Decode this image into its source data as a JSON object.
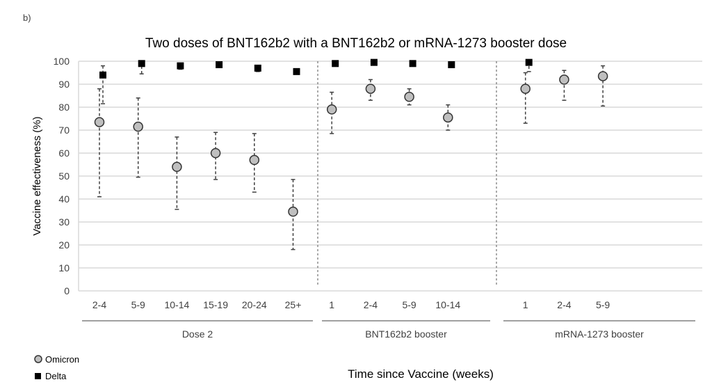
{
  "panel_label": "b)",
  "chart_data": {
    "type": "scatter",
    "title": "Two doses of BNT162b2 with a BNT162b2 or mRNA-1273 booster dose",
    "xlabel": "Time since Vaccine (weeks)",
    "ylabel": "Vaccine effectiveness (%)",
    "ylim": [
      0,
      100
    ],
    "yticks": [
      0,
      10,
      20,
      30,
      40,
      50,
      60,
      70,
      80,
      90,
      100
    ],
    "grid": true,
    "legend_position": "bottom-left",
    "groups": [
      {
        "name": "Dose 2",
        "categories": [
          "2-4",
          "5-9",
          "10-14",
          "15-19",
          "20-24",
          "25+"
        ]
      },
      {
        "name": "BNT162b2 booster",
        "categories": [
          "1",
          "2-4",
          "5-9",
          "10-14"
        ]
      },
      {
        "name": "mRNA-1273 booster",
        "categories": [
          "1",
          "2-4",
          "5-9"
        ]
      }
    ],
    "series": [
      {
        "name": "Omicron",
        "marker": "circle",
        "color": "#bfbfbf",
        "values": [
          73.5,
          71.5,
          54,
          60,
          57,
          34.5,
          79,
          88,
          84.5,
          75.5,
          88,
          92,
          93.5
        ],
        "ci_low": [
          41,
          49.5,
          35.5,
          48.5,
          43,
          18,
          68.5,
          83,
          81,
          70,
          73,
          83,
          80.5
        ],
        "ci_high": [
          88,
          84,
          67,
          69,
          68.5,
          48.5,
          86.5,
          92,
          88,
          81,
          95,
          96,
          98
        ]
      },
      {
        "name": "Delta",
        "marker": "square",
        "color": "#000000",
        "values": [
          94,
          99,
          98,
          98.5,
          97,
          95.5,
          99,
          99.5,
          99,
          98.5,
          99.5,
          null,
          null
        ],
        "ci_low": [
          81.5,
          94.5,
          96.5,
          98,
          95.5,
          95,
          99,
          99.5,
          99,
          98.5,
          95.5,
          null,
          null
        ],
        "ci_high": [
          98,
          100,
          99,
          99,
          97.5,
          96,
          99,
          99.5,
          99,
          98.5,
          100,
          null,
          null
        ]
      }
    ]
  }
}
